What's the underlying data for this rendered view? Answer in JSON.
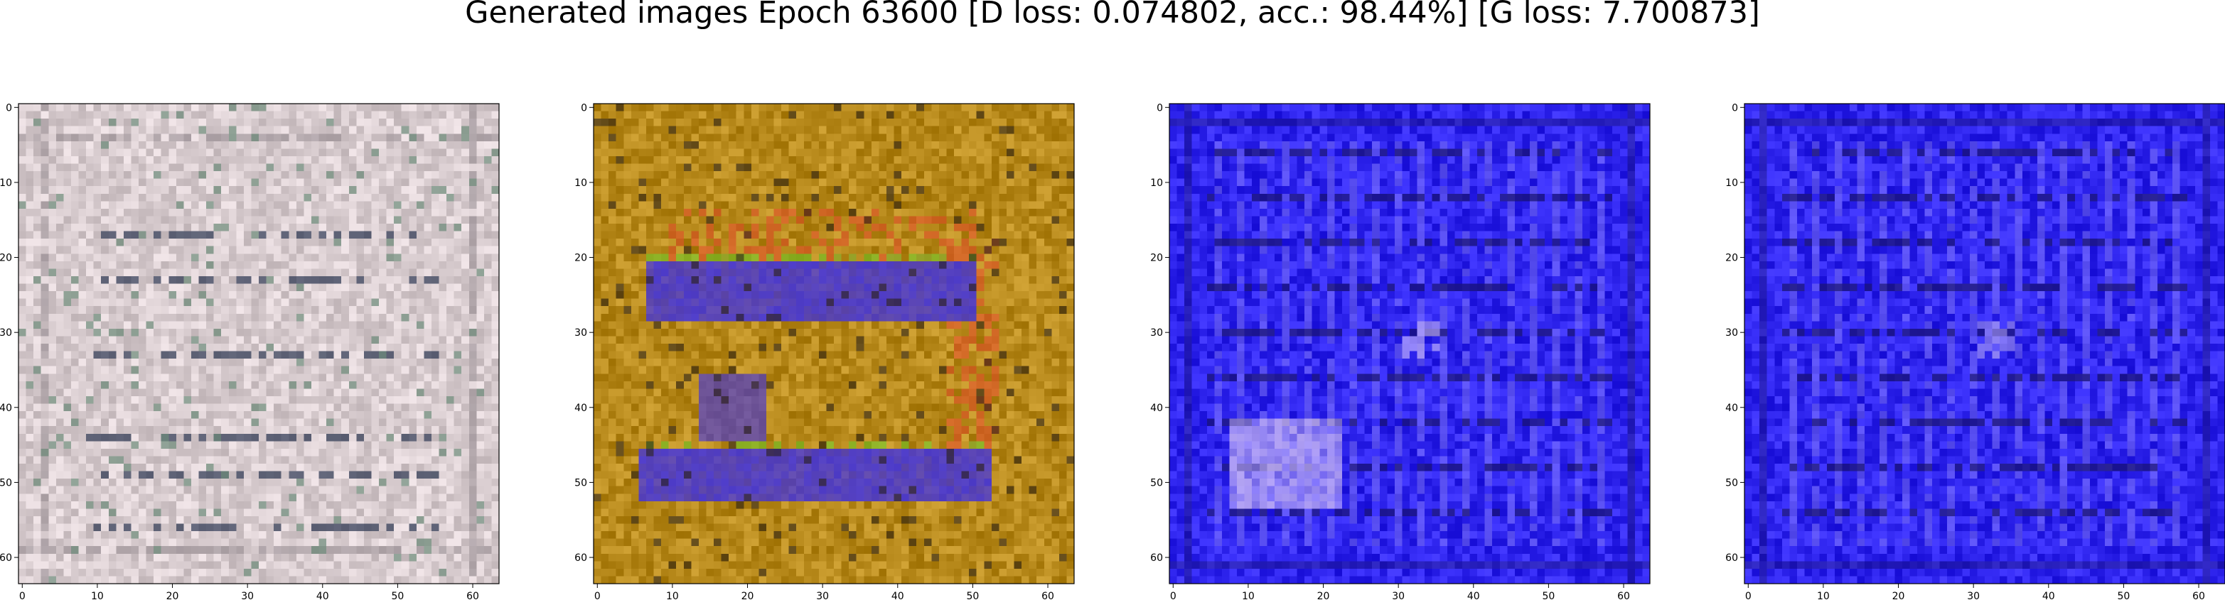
{
  "figure": {
    "title": "Generated images Epoch 63600 [D loss: 0.074802, acc.: 98.44%] [G loss: 7.700873]"
  },
  "panels": [
    {
      "image_description": "washed-out pinkish-gray noisy texture with faint horizontal streaks and a rectangular border",
      "palette": {
        "base": "#d9cdd0",
        "stripe": "#2a3550",
        "accent": "#6b8a78"
      },
      "x_ticks": [
        "0",
        "10",
        "20",
        "30",
        "40",
        "50",
        "60"
      ],
      "y_ticks": [
        "0",
        "10",
        "20",
        "30",
        "40",
        "50",
        "60"
      ]
    },
    {
      "image_description": "ochre/gold noisy texture with two large blue horizontal bars and orange-red blotches",
      "palette": {
        "base": "#b88a1c",
        "bar": "#3b2ee8",
        "accent": "#e0502a"
      },
      "x_ticks": [
        "0",
        "10",
        "20",
        "30",
        "40",
        "50",
        "60"
      ],
      "y_ticks": [
        "0",
        "10",
        "20",
        "30",
        "40",
        "50",
        "60"
      ]
    },
    {
      "image_description": "bright blue noisy grid pattern with dark stripes and a pale purple-white blotch in the lower left",
      "palette": {
        "base": "#2f25ee",
        "stripe": "#1a1470",
        "accent": "#c9b8f5"
      },
      "x_ticks": [
        "0",
        "10",
        "20",
        "30",
        "40",
        "50",
        "60"
      ],
      "y_ticks": [
        "0",
        "10",
        "20",
        "30",
        "40",
        "50",
        "60"
      ]
    },
    {
      "image_description": "bright blue noisy grid pattern with dark stripes, similar to panel three",
      "palette": {
        "base": "#2f25ee",
        "stripe": "#1a1470",
        "accent": "#a99cf0"
      },
      "x_ticks": [
        "0",
        "10",
        "20",
        "30",
        "40",
        "50",
        "60"
      ],
      "y_ticks": [
        "0",
        "10",
        "20",
        "30",
        "40",
        "50",
        "60"
      ]
    }
  ]
}
